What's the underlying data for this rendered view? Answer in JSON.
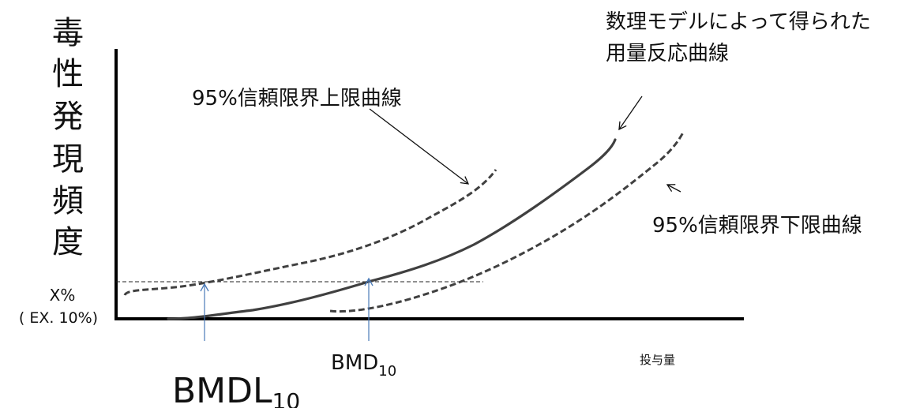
{
  "y_axis": {
    "label_chars": [
      "毒",
      "性",
      "発",
      "現",
      "頻",
      "度"
    ]
  },
  "x_axis": {
    "label": "投与量"
  },
  "threshold": {
    "label": "X%",
    "example": "( EX. 10%)"
  },
  "curves": {
    "model": {
      "label_line1": "数理モデルによって得られた",
      "label_line2": "用量反応曲線"
    },
    "upper": {
      "label": "95%信頼限界上限曲線"
    },
    "lower": {
      "label": "95%信頼限界下限曲線"
    }
  },
  "markers": {
    "bmd": {
      "base": "BMD",
      "sub": "10"
    },
    "bmdl": {
      "base": "BMDL",
      "sub": "10"
    }
  },
  "colors": {
    "curve": "#404040",
    "axis": "#000000",
    "marker_arrow": "#4a7ab8",
    "threshold_line": "#222222"
  }
}
